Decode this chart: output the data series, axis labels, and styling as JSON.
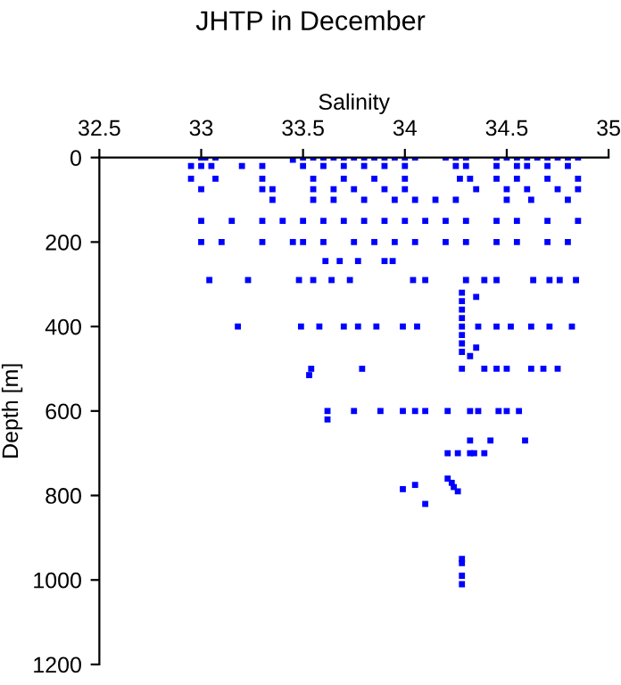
{
  "chart_data": {
    "type": "scatter",
    "title": "JHTP in December",
    "xlabel": "Salinity",
    "ylabel": "Depth [m]",
    "xlim": [
      32.5,
      35
    ],
    "xticks": [
      32.5,
      33,
      33.5,
      34,
      34.5,
      35
    ],
    "ylim": [
      1200,
      0
    ],
    "yticks": [
      0,
      200,
      400,
      600,
      800,
      1000,
      1200
    ],
    "grid": false,
    "marker": "square",
    "series": [
      {
        "color": "#0000ff",
        "x": [
          33.0,
          33.02,
          33.07,
          33.45,
          33.5,
          33.55,
          33.6,
          33.65,
          33.7,
          33.75,
          33.8,
          33.85,
          33.9,
          33.95,
          34.0,
          34.05,
          34.2,
          34.25,
          34.3,
          34.45,
          34.5,
          34.55,
          34.6,
          34.65,
          34.7,
          34.75,
          34.8,
          34.85,
          32.95,
          33.0,
          33.05,
          33.2,
          33.3,
          33.5,
          33.6,
          33.7,
          33.8,
          33.9,
          34.0,
          34.25,
          34.3,
          34.45,
          34.55,
          34.6,
          34.7,
          34.8,
          32.95,
          33.07,
          33.3,
          33.55,
          33.7,
          33.85,
          34.0,
          34.27,
          34.32,
          34.45,
          34.55,
          34.7,
          34.85,
          33.0,
          33.3,
          33.35,
          33.55,
          33.65,
          33.75,
          33.9,
          34.0,
          34.35,
          34.5,
          34.6,
          34.75,
          34.85,
          33.35,
          33.55,
          33.65,
          33.8,
          33.95,
          34.05,
          34.15,
          34.25,
          34.5,
          34.62,
          34.8,
          33.0,
          33.15,
          33.3,
          33.4,
          33.5,
          33.6,
          33.7,
          33.8,
          33.9,
          34.0,
          34.1,
          34.2,
          34.3,
          34.45,
          34.55,
          34.7,
          34.85,
          33.0,
          33.1,
          33.3,
          33.45,
          33.5,
          33.6,
          33.75,
          33.85,
          33.95,
          34.05,
          34.2,
          34.3,
          34.45,
          34.55,
          34.7,
          34.8,
          33.61,
          33.68,
          33.77,
          33.9,
          33.94,
          33.04,
          33.23,
          33.48,
          33.55,
          33.64,
          33.73,
          34.04,
          34.1,
          34.3,
          34.39,
          34.45,
          34.63,
          34.71,
          34.76,
          34.84,
          33.18,
          33.49,
          33.58,
          33.7,
          33.77,
          33.86,
          33.99,
          34.06,
          34.28,
          34.36,
          34.45,
          34.52,
          34.62,
          34.71,
          34.82,
          33.54,
          33.79,
          34.28,
          34.39,
          34.45,
          34.5,
          34.62,
          34.68,
          34.75,
          33.53,
          33.62,
          33.75,
          33.88,
          33.99,
          34.05,
          34.1,
          34.21,
          34.32,
          34.36,
          34.46,
          34.5,
          34.56,
          33.62,
          34.32,
          34.42,
          34.59,
          34.21,
          34.26,
          34.32,
          34.34,
          34.39,
          34.21,
          34.23,
          34.24,
          34.26,
          33.99,
          34.05,
          34.1,
          34.28,
          34.28,
          34.28,
          34.28,
          34.28,
          34.28,
          34.28,
          34.28,
          34.28,
          34.28,
          34.28,
          34.35,
          34.35,
          34.32
        ],
        "values": [
          0,
          0,
          0,
          5,
          0,
          0,
          0,
          0,
          0,
          0,
          0,
          0,
          0,
          0,
          0,
          0,
          0,
          0,
          0,
          0,
          0,
          0,
          0,
          0,
          0,
          0,
          0,
          0,
          20,
          20,
          20,
          20,
          20,
          20,
          20,
          20,
          20,
          20,
          20,
          20,
          20,
          20,
          20,
          20,
          20,
          20,
          50,
          50,
          50,
          50,
          50,
          50,
          50,
          50,
          50,
          50,
          50,
          50,
          50,
          75,
          75,
          75,
          75,
          75,
          75,
          75,
          75,
          75,
          75,
          75,
          75,
          75,
          100,
          100,
          100,
          100,
          100,
          100,
          100,
          100,
          100,
          100,
          100,
          150,
          150,
          150,
          150,
          150,
          150,
          150,
          150,
          150,
          150,
          150,
          150,
          150,
          150,
          150,
          150,
          150,
          200,
          200,
          200,
          200,
          200,
          200,
          200,
          200,
          200,
          200,
          200,
          200,
          200,
          200,
          200,
          200,
          245,
          245,
          245,
          245,
          245,
          290,
          290,
          290,
          290,
          290,
          290,
          290,
          290,
          290,
          290,
          290,
          290,
          290,
          290,
          290,
          400,
          400,
          400,
          400,
          400,
          400,
          400,
          400,
          400,
          400,
          400,
          400,
          400,
          400,
          400,
          500,
          500,
          500,
          500,
          500,
          500,
          500,
          500,
          500,
          515,
          600,
          600,
          600,
          600,
          600,
          600,
          600,
          600,
          600,
          600,
          600,
          600,
          620,
          670,
          670,
          670,
          700,
          700,
          700,
          700,
          700,
          760,
          770,
          780,
          790,
          785,
          775,
          820,
          950,
          960,
          990,
          1010,
          320,
          340,
          360,
          380,
          420,
          440,
          460,
          330,
          450,
          470
        ]
      }
    ]
  }
}
